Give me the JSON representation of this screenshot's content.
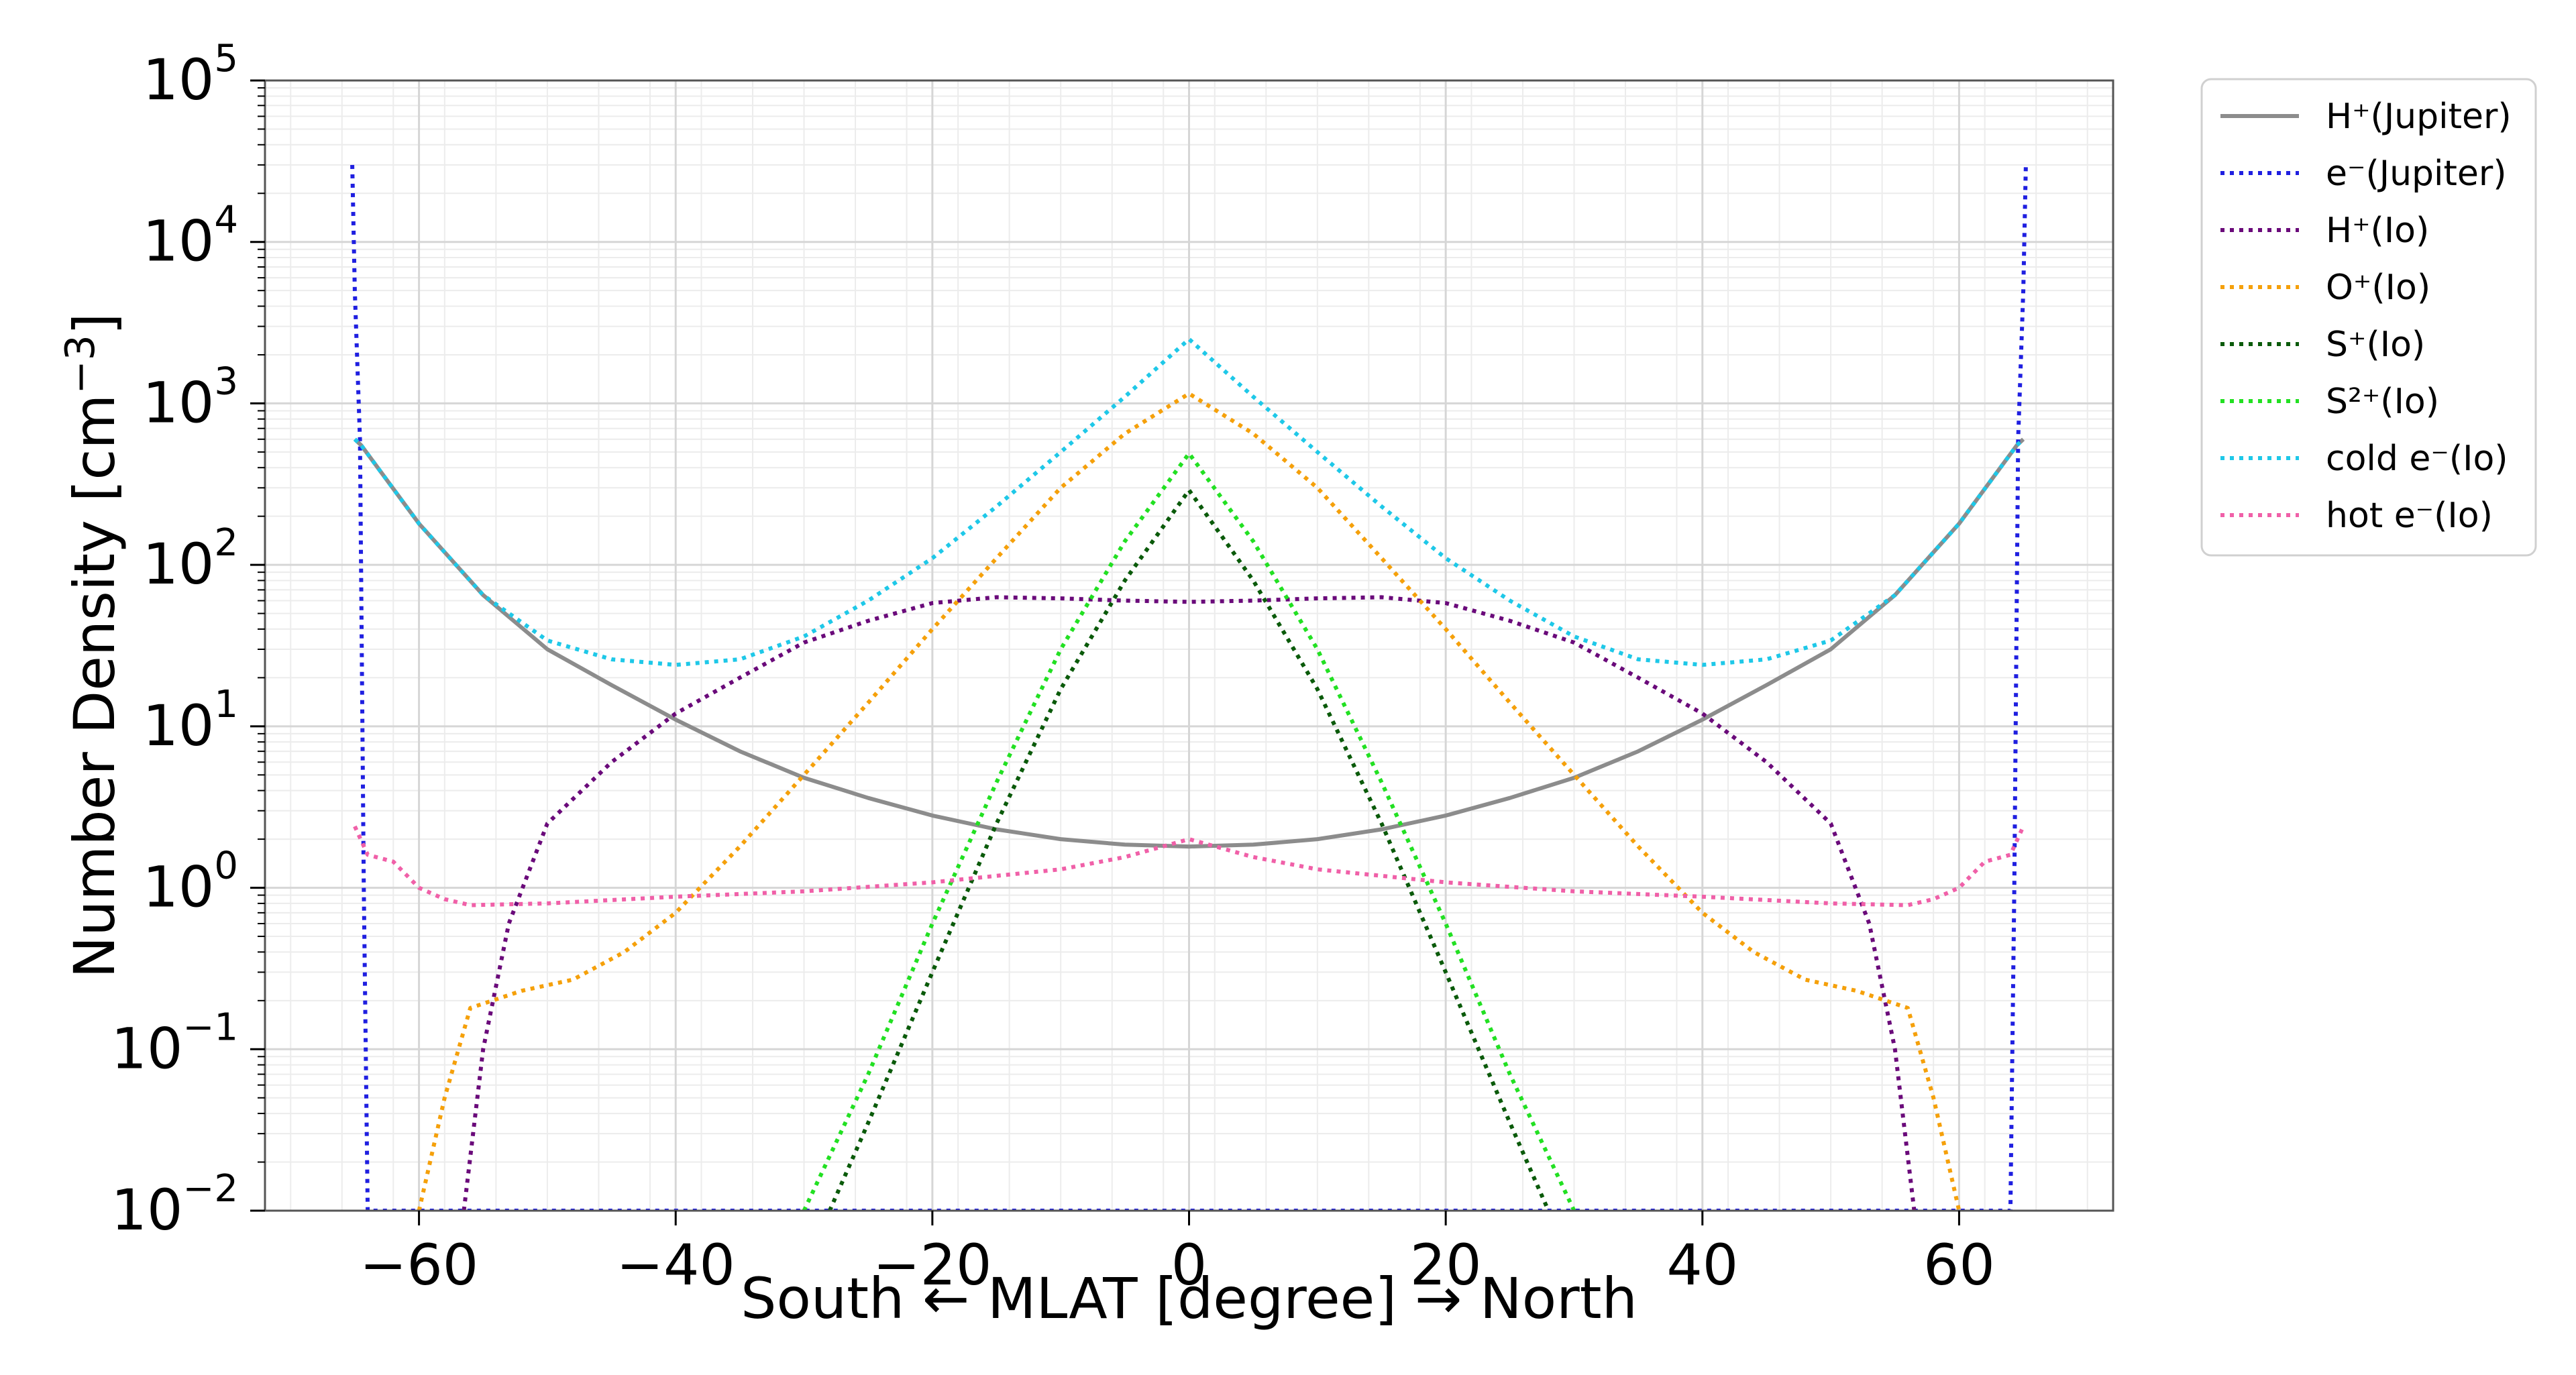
{
  "chart_data": {
    "type": "line",
    "xlabel": "South ← MLAT [degree] → North",
    "ylabel_main": "Number Density [cm",
    "ylabel_exp": "−3",
    "ylabel_close": "]",
    "y_scale": "log",
    "xlim": [
      -72,
      72
    ],
    "ylim": [
      0.01,
      100000
    ],
    "x_ticks": [
      -60,
      -40,
      -20,
      0,
      20,
      40,
      60
    ],
    "x_tick_labels": [
      "−60",
      "−40",
      "−20",
      "0",
      "20",
      "40",
      "60"
    ],
    "y_ticks": [
      {
        "base": "10",
        "exp": "−2"
      },
      {
        "base": "10",
        "exp": "−1"
      },
      {
        "base": "10",
        "exp": "0"
      },
      {
        "base": "10",
        "exp": "1"
      },
      {
        "base": "10",
        "exp": "2"
      },
      {
        "base": "10",
        "exp": "3"
      },
      {
        "base": "10",
        "exp": "4"
      },
      {
        "base": "10",
        "exp": "5"
      }
    ],
    "grid": true,
    "legend_position": "outside-right-top",
    "series": [
      {
        "name": "H⁺(Jupiter)",
        "color": "#8c8c8c",
        "style": "solid",
        "x": [
          -65,
          -64.5,
          -60,
          -55,
          -50,
          -45,
          -40,
          -35,
          -30,
          -25,
          -20,
          -15,
          -10,
          -5,
          0,
          5,
          10,
          15,
          20,
          25,
          30,
          35,
          40,
          45,
          50,
          55,
          60,
          64.5,
          65
        ],
        "y": [
          600,
          550,
          180,
          65,
          30,
          18,
          11,
          7,
          4.8,
          3.6,
          2.8,
          2.3,
          2.0,
          1.85,
          1.8,
          1.85,
          2.0,
          2.3,
          2.8,
          3.6,
          4.8,
          7,
          11,
          18,
          30,
          65,
          180,
          550,
          600
        ]
      },
      {
        "name": "e⁻(Jupiter)",
        "color": "#1f1fe0",
        "style": "dotted",
        "x": [
          -65.2,
          -65,
          -64.6,
          -64.3,
          -64.0,
          64.0,
          64.3,
          64.6,
          65,
          65.2
        ],
        "y": [
          30000,
          5000,
          600,
          1,
          0.01,
          0.01,
          1,
          600,
          5000,
          30000
        ]
      },
      {
        "name": "H⁺(Io)",
        "color": "#6a0a7a",
        "style": "dotted",
        "x": [
          -56.5,
          -55,
          -53,
          -50,
          -45,
          -40,
          -35,
          -30,
          -25,
          -20,
          -15,
          -10,
          -5,
          0,
          5,
          10,
          15,
          20,
          25,
          30,
          35,
          40,
          45,
          50,
          53,
          55,
          56.5
        ],
        "y": [
          0.01,
          0.1,
          0.6,
          2.5,
          6,
          12,
          20,
          33,
          45,
          58,
          63,
          62,
          60,
          59,
          60,
          62,
          63,
          58,
          45,
          33,
          20,
          12,
          6,
          2.5,
          0.6,
          0.1,
          0.01
        ]
      },
      {
        "name": "O⁺(Io)",
        "color": "#f5a00a",
        "style": "dotted",
        "x": [
          -60,
          -58,
          -56,
          -52,
          -48,
          -44,
          -40,
          -35,
          -30,
          -25,
          -20,
          -15,
          -10,
          -5,
          0,
          5,
          10,
          15,
          20,
          25,
          30,
          35,
          40,
          44,
          48,
          52,
          56,
          58,
          60
        ],
        "y": [
          0.01,
          0.05,
          0.18,
          0.23,
          0.27,
          0.4,
          0.7,
          1.8,
          5,
          14,
          40,
          110,
          300,
          650,
          1150,
          650,
          300,
          110,
          40,
          14,
          5,
          1.8,
          0.7,
          0.4,
          0.27,
          0.23,
          0.18,
          0.05,
          0.01
        ]
      },
      {
        "name": "S⁺(Io)",
        "color": "#0a5a0a",
        "style": "dotted",
        "x": [
          -28,
          -25,
          -20,
          -15,
          -10,
          -5,
          0,
          5,
          10,
          15,
          20,
          25,
          28
        ],
        "y": [
          0.01,
          0.035,
          0.3,
          2.5,
          17,
          80,
          290,
          80,
          17,
          2.5,
          0.3,
          0.035,
          0.01
        ]
      },
      {
        "name": "S²⁺(Io)",
        "color": "#22e022",
        "style": "dotted",
        "x": [
          -30,
          -25,
          -20,
          -15,
          -10,
          -5,
          0,
          5,
          10,
          15,
          20,
          25,
          30
        ],
        "y": [
          0.01,
          0.07,
          0.6,
          4.5,
          30,
          140,
          490,
          140,
          30,
          4.5,
          0.6,
          0.07,
          0.01
        ]
      },
      {
        "name": "cold e⁻(Io)",
        "color": "#1ec8e8",
        "style": "dotted",
        "x": [
          -65,
          -64.5,
          -60,
          -55,
          -50,
          -45,
          -40,
          -35,
          -30,
          -25,
          -20,
          -15,
          -10,
          -5,
          0,
          5,
          10,
          15,
          20,
          25,
          30,
          35,
          40,
          45,
          50,
          55,
          60,
          64.5,
          65
        ],
        "y": [
          600,
          550,
          180,
          65,
          34,
          26,
          24,
          26,
          36,
          60,
          110,
          230,
          500,
          1100,
          2500,
          1100,
          500,
          230,
          110,
          60,
          36,
          26,
          24,
          26,
          34,
          65,
          180,
          550,
          600
        ]
      },
      {
        "name": "hot e⁻(Io)",
        "color": "#f060a8",
        "style": "dotted",
        "x": [
          -65,
          -64,
          -62,
          -60,
          -58,
          -56,
          -50,
          -40,
          -30,
          -20,
          -10,
          -5,
          0,
          5,
          10,
          20,
          30,
          40,
          50,
          56,
          58,
          60,
          62,
          64,
          65
        ],
        "y": [
          2.4,
          1.6,
          1.45,
          1.0,
          0.85,
          0.78,
          0.8,
          0.88,
          0.95,
          1.08,
          1.3,
          1.55,
          2.0,
          1.55,
          1.3,
          1.08,
          0.95,
          0.88,
          0.8,
          0.78,
          0.85,
          1.0,
          1.45,
          1.6,
          2.4
        ]
      }
    ]
  }
}
